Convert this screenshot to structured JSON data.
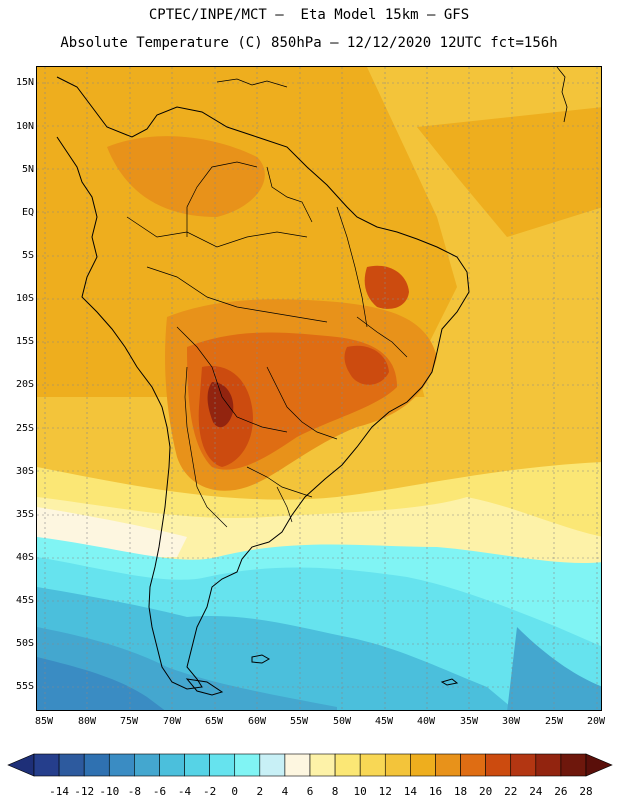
{
  "title": {
    "line1": "CPTEC/INPE/MCT –  Eta Model 15km – GFS",
    "line2": "Absolute Temperature (C) 850hPa – 12/12/2020 12UTC fct=156h"
  },
  "map": {
    "region": "South America",
    "lat_labels": [
      "15N",
      "10N",
      "5N",
      "EQ",
      "5S",
      "10S",
      "15S",
      "20S",
      "25S",
      "30S",
      "35S",
      "40S",
      "45S",
      "50S",
      "55S"
    ],
    "lon_labels": [
      "85W",
      "80W",
      "75W",
      "70W",
      "65W",
      "60W",
      "55W",
      "50W",
      "45W",
      "40W",
      "35W",
      "30W",
      "25W",
      "20W"
    ]
  },
  "colorbar": {
    "values": [
      "-14",
      "-12",
      "-10",
      "-8",
      "-6",
      "-4",
      "-2",
      "0",
      "2",
      "4",
      "6",
      "8",
      "10",
      "12",
      "14",
      "16",
      "18",
      "20",
      "22",
      "24",
      "26",
      "28"
    ],
    "colors": [
      "#253e8c",
      "#2d5a9e",
      "#2f71b1",
      "#3a8cc3",
      "#44a7cf",
      "#4bbfdc",
      "#56d3e6",
      "#66e3ee",
      "#80f4f4",
      "#c8f0f6",
      "#fdf6e0",
      "#fdf2a8",
      "#fbe775",
      "#f8d755",
      "#f3c43a",
      "#eeae1e",
      "#e8921a",
      "#df6d13",
      "#cc4b0f",
      "#b33612",
      "#92240f",
      "#6e170c"
    ],
    "under_color": "#1e2f78",
    "over_color": "#5a0f0a"
  }
}
